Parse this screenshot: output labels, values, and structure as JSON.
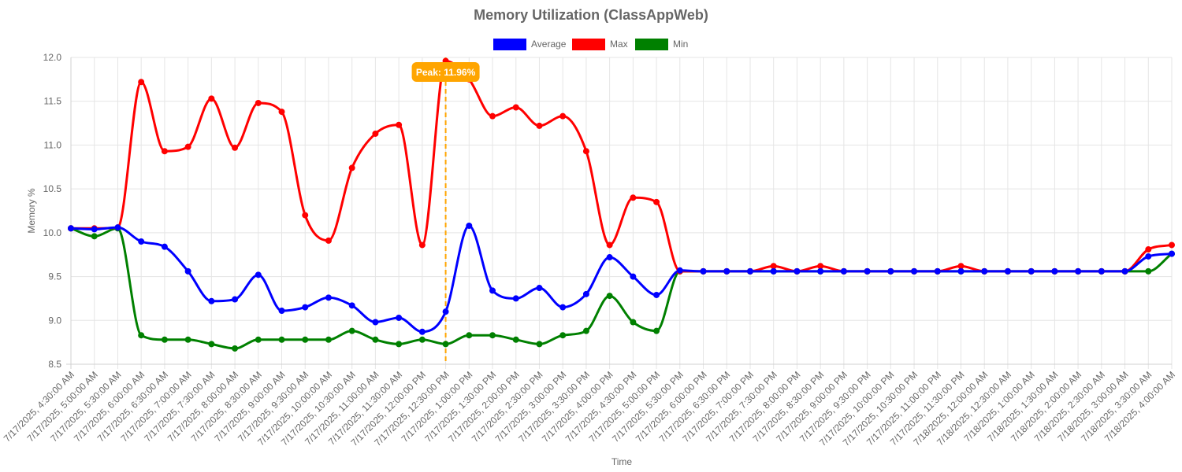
{
  "chart_data": {
    "type": "line",
    "title": "Memory Utilization (ClassAppWeb)",
    "xlabel": "Time",
    "ylabel": "Memory %",
    "ylim": [
      8.5,
      12.0
    ],
    "yticks": [
      "8.5",
      "9.0",
      "9.5",
      "10.0",
      "10.5",
      "11.0",
      "11.5",
      "12.0"
    ],
    "grid": true,
    "legend_position": "top-center",
    "categories": [
      "7/17/2025, 4:30:00 AM",
      "7/17/2025, 5:00:00 AM",
      "7/17/2025, 5:30:00 AM",
      "7/17/2025, 6:00:00 AM",
      "7/17/2025, 6:30:00 AM",
      "7/17/2025, 7:00:00 AM",
      "7/17/2025, 7:30:00 AM",
      "7/17/2025, 8:00:00 AM",
      "7/17/2025, 8:30:00 AM",
      "7/17/2025, 9:00:00 AM",
      "7/17/2025, 9:30:00 AM",
      "7/17/2025, 10:00:00 AM",
      "7/17/2025, 10:30:00 AM",
      "7/17/2025, 11:00:00 AM",
      "7/17/2025, 11:30:00 AM",
      "7/17/2025, 12:00:00 PM",
      "7/17/2025, 12:30:00 PM",
      "7/17/2025, 1:00:00 PM",
      "7/17/2025, 1:30:00 PM",
      "7/17/2025, 2:00:00 PM",
      "7/17/2025, 2:30:00 PM",
      "7/17/2025, 3:00:00 PM",
      "7/17/2025, 3:30:00 PM",
      "7/17/2025, 4:00:00 PM",
      "7/17/2025, 4:30:00 PM",
      "7/17/2025, 5:00:00 PM",
      "7/17/2025, 5:30:00 PM",
      "7/17/2025, 6:00:00 PM",
      "7/17/2025, 6:30:00 PM",
      "7/17/2025, 7:00:00 PM",
      "7/17/2025, 7:30:00 PM",
      "7/17/2025, 8:00:00 PM",
      "7/17/2025, 8:30:00 PM",
      "7/17/2025, 9:00:00 PM",
      "7/17/2025, 9:30:00 PM",
      "7/17/2025, 10:00:00 PM",
      "7/17/2025, 10:30:00 PM",
      "7/17/2025, 11:00:00 PM",
      "7/17/2025, 11:30:00 PM",
      "7/18/2025, 12:00:00 AM",
      "7/18/2025, 12:30:00 AM",
      "7/18/2025, 1:00:00 AM",
      "7/18/2025, 1:30:00 AM",
      "7/18/2025, 2:00:00 AM",
      "7/18/2025, 2:30:00 AM",
      "7/18/2025, 3:00:00 AM",
      "7/18/2025, 3:30:00 AM",
      "7/18/2025, 4:00:00 AM"
    ],
    "series": [
      {
        "name": "Average",
        "color": "#0000ff",
        "values": [
          10.05,
          10.04,
          10.06,
          9.9,
          9.84,
          9.56,
          9.22,
          9.24,
          9.52,
          9.11,
          9.15,
          9.26,
          9.17,
          8.98,
          9.03,
          8.87,
          9.1,
          10.08,
          9.34,
          9.25,
          9.37,
          9.15,
          9.3,
          9.72,
          9.5,
          9.29,
          9.57,
          9.56,
          9.56,
          9.56,
          9.56,
          9.56,
          9.56,
          9.56,
          9.56,
          9.56,
          9.56,
          9.56,
          9.56,
          9.56,
          9.56,
          9.56,
          9.56,
          9.56,
          9.56,
          9.56,
          9.73,
          9.76
        ]
      },
      {
        "name": "Max",
        "color": "#ff0000",
        "values": [
          10.05,
          10.05,
          10.06,
          11.72,
          10.93,
          10.98,
          11.53,
          10.97,
          11.48,
          11.38,
          10.2,
          9.91,
          10.74,
          11.13,
          11.23,
          9.86,
          11.96,
          11.75,
          11.33,
          11.43,
          11.22,
          11.33,
          10.93,
          9.86,
          10.4,
          10.35,
          9.56,
          9.56,
          9.56,
          9.56,
          9.62,
          9.56,
          9.62,
          9.56,
          9.56,
          9.56,
          9.56,
          9.56,
          9.62,
          9.56,
          9.56,
          9.56,
          9.56,
          9.56,
          9.56,
          9.56,
          9.81,
          9.86
        ]
      },
      {
        "name": "Min",
        "color": "#008000",
        "values": [
          10.05,
          9.96,
          10.05,
          8.83,
          8.78,
          8.78,
          8.73,
          8.68,
          8.78,
          8.78,
          8.78,
          8.78,
          8.88,
          8.78,
          8.73,
          8.78,
          8.73,
          8.83,
          8.83,
          8.78,
          8.73,
          8.83,
          8.88,
          9.28,
          8.98,
          8.88,
          9.56,
          9.56,
          9.56,
          9.56,
          9.56,
          9.56,
          9.56,
          9.56,
          9.56,
          9.56,
          9.56,
          9.56,
          9.56,
          9.56,
          9.56,
          9.56,
          9.56,
          9.56,
          9.56,
          9.56,
          9.56,
          9.76
        ]
      }
    ],
    "annotation": {
      "label": "Peak: 11.96%",
      "category_index": 16,
      "value": 11.96,
      "color": "#ffa500"
    },
    "colors": {
      "text": "#666666",
      "grid": "#e5e5e5",
      "axis": "#d0d0d0"
    }
  }
}
